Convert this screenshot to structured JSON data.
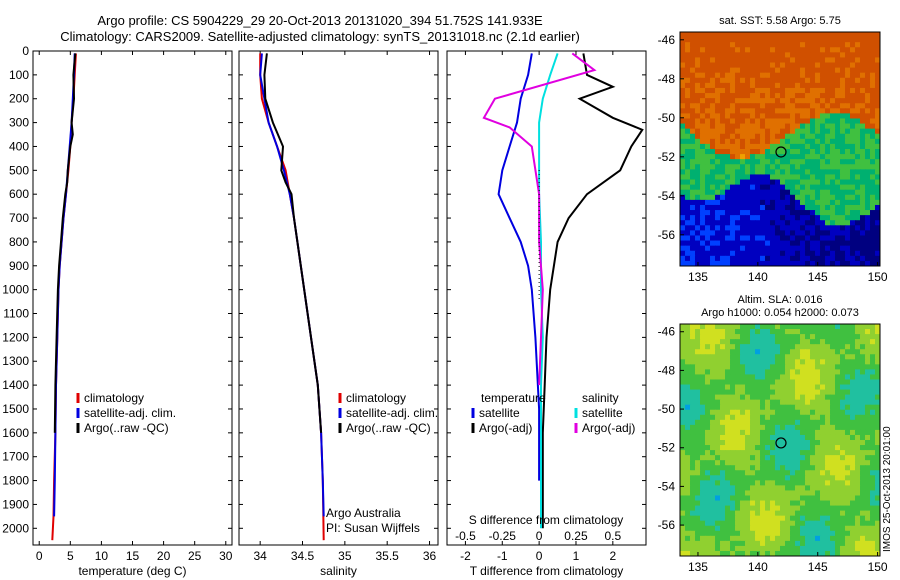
{
  "header": {
    "line1": "Argo profile: CS 5904229_29 20-Oct-2013 20131020_394 51.752S 141.933E",
    "line2": "Climatology: CARS2009. Satellite-adjusted climatology: synTS_20131018.nc (2.1d earlier)"
  },
  "colors": {
    "climatology": "#e00000",
    "satellite": "#0000e0",
    "argo": "#000000",
    "sat_salinity": "#00e0e0",
    "argo_salinity": "#e000e0"
  },
  "chart_data": [
    {
      "type": "line",
      "name": "temperature-profile",
      "xlabel": "temperature (deg C)",
      "xlim": [
        -1,
        31
      ],
      "ylim": [
        2070,
        0
      ],
      "xticks": [
        "0",
        "5",
        "10",
        "15",
        "20",
        "25",
        "30"
      ],
      "yticks": [
        "0",
        "100",
        "200",
        "300",
        "400",
        "500",
        "600",
        "700",
        "800",
        "900",
        "1000",
        "1100",
        "1200",
        "1300",
        "1400",
        "1500",
        "1600",
        "1700",
        "1800",
        "1900",
        "2000"
      ],
      "legend": [
        "climatology",
        "satellite-adj. clim.",
        "Argo(..raw -QC)"
      ],
      "series": [
        {
          "name": "climatology",
          "color": "#e00000",
          "x": [
            5.9,
            5.7,
            5.5,
            5.2,
            5.0,
            4.7,
            4.3,
            3.9,
            3.6,
            3.3,
            3.1,
            2.9,
            2.7,
            2.6,
            2.4,
            2.3,
            2.1
          ],
          "y": [
            10,
            100,
            200,
            300,
            400,
            500,
            600,
            700,
            800,
            900,
            1000,
            1200,
            1400,
            1600,
            1800,
            1950,
            2050
          ]
        },
        {
          "name": "satellite-adj. clim.",
          "color": "#0000e0",
          "x": [
            5.7,
            5.6,
            5.4,
            5.2,
            4.9,
            4.6,
            4.3,
            3.9,
            3.6,
            3.3,
            3.1,
            2.9,
            2.7,
            2.6,
            2.5,
            2.4
          ],
          "y": [
            10,
            100,
            200,
            300,
            400,
            500,
            600,
            700,
            800,
            900,
            1000,
            1200,
            1400,
            1600,
            1800,
            1950
          ]
        },
        {
          "name": "Argo(..raw -QC)",
          "color": "#000000",
          "x": [
            5.8,
            5.5,
            5.6,
            5.2,
            5.4,
            5.0,
            4.6,
            4.5,
            4.2,
            3.8,
            3.5,
            3.2,
            3.0,
            2.8,
            2.6,
            2.5
          ],
          "y": [
            10,
            100,
            200,
            300,
            350,
            400,
            500,
            550,
            600,
            700,
            800,
            900,
            1000,
            1200,
            1400,
            1600
          ]
        }
      ]
    },
    {
      "type": "line",
      "name": "salinity-profile",
      "xlabel": "salinity",
      "xlim": [
        33.75,
        36.1
      ],
      "ylim": [
        2070,
        0
      ],
      "xticks": [
        "34",
        "34.5",
        "35",
        "35.5",
        "36"
      ],
      "legend": [
        "climatology",
        "satellite-adj. clim.",
        "Argo(..raw -QC)"
      ],
      "annotation": [
        "Argo Australia",
        "PI: Susan Wijffels"
      ],
      "series": [
        {
          "name": "climatology",
          "color": "#e00000",
          "x": [
            34.0,
            34.0,
            34.02,
            34.1,
            34.2,
            34.3,
            34.35,
            34.4,
            34.44,
            34.48,
            34.52,
            34.56,
            34.6,
            34.64,
            34.68,
            34.72,
            34.74,
            34.75
          ],
          "y": [
            10,
            100,
            200,
            300,
            400,
            500,
            600,
            700,
            800,
            900,
            1000,
            1100,
            1200,
            1300,
            1400,
            1600,
            1800,
            2050
          ]
        },
        {
          "name": "satellite-adj. clim.",
          "color": "#0000e0",
          "x": [
            34.02,
            34.0,
            34.05,
            34.1,
            34.2,
            34.28,
            34.35,
            34.4,
            34.44,
            34.48,
            34.52,
            34.56,
            34.6,
            34.64,
            34.68,
            34.72,
            34.74,
            34.75
          ],
          "y": [
            10,
            100,
            200,
            300,
            400,
            500,
            600,
            700,
            800,
            900,
            1000,
            1100,
            1200,
            1300,
            1400,
            1600,
            1800,
            1950
          ]
        },
        {
          "name": "Argo(..raw -QC)",
          "color": "#000000",
          "x": [
            34.08,
            34.05,
            34.06,
            34.15,
            34.27,
            34.25,
            34.3,
            34.37,
            34.4,
            34.44,
            34.48,
            34.52,
            34.56,
            34.6,
            34.64,
            34.68,
            34.72
          ],
          "y": [
            10,
            100,
            200,
            300,
            400,
            500,
            550,
            600,
            700,
            800,
            900,
            1000,
            1100,
            1200,
            1300,
            1400,
            1600
          ]
        }
      ]
    },
    {
      "type": "line",
      "name": "difference-profile",
      "xlabel": "T difference from climatology",
      "xlabel_top": "S difference from climatology",
      "xlim": [
        -2.5,
        2.9
      ],
      "xticks": [
        "-2",
        "-1",
        "0",
        "1",
        "2"
      ],
      "xticks_top": [
        "-0.5",
        "-0.25",
        "0",
        "0.25",
        "0.5"
      ],
      "ylim": [
        2070,
        0
      ],
      "legend_left_title": "temperature",
      "legend_right_title": "salinity",
      "legend_left": [
        "satellite",
        "Argo(-adj)"
      ],
      "legend_right": [
        "satellite",
        "Argo(-adj)"
      ],
      "series": [
        {
          "name": "temperature satellite",
          "color": "#0000e0",
          "x": [
            -0.2,
            -0.3,
            -0.5,
            -0.6,
            -0.8,
            -1.0,
            -1.1,
            -0.8,
            -0.5,
            -0.3,
            -0.2,
            -0.1,
            0.0,
            0.0
          ],
          "y": [
            10,
            100,
            200,
            300,
            400,
            500,
            600,
            700,
            800,
            900,
            1000,
            1200,
            1500,
            1800
          ]
        },
        {
          "name": "temperature Argo(-adj)",
          "color": "#000000",
          "x": [
            1.2,
            1.3,
            2.0,
            1.1,
            2.0,
            2.8,
            2.5,
            2.2,
            1.3,
            0.8,
            0.5,
            0.4,
            0.3,
            0.2,
            0.15,
            0.1,
            0.1,
            0.1
          ],
          "y": [
            10,
            100,
            150,
            200,
            280,
            330,
            400,
            500,
            600,
            700,
            800,
            900,
            1000,
            1200,
            1400,
            1600,
            1800,
            2000
          ]
        },
        {
          "name": "salinity satellite",
          "color": "#00e0e0",
          "x": [
            0.5,
            0.3,
            0.2,
            0.1,
            0.0,
            0.0,
            0.0,
            0.05,
            0.05,
            0.1,
            0.05,
            0.05,
            0.05,
            0.05
          ],
          "y": [
            10,
            100,
            150,
            200,
            300,
            400,
            600,
            800,
            1000,
            1200,
            1400,
            1600,
            1800,
            2000
          ]
        },
        {
          "name": "salinity Argo(-adj)",
          "color": "#e000e0",
          "x": [
            0.9,
            1.5,
            -1.2,
            -1.5,
            -0.8,
            -0.2,
            0.0,
            0.0,
            0.1,
            0.05,
            0.0
          ],
          "y": [
            10,
            80,
            200,
            280,
            320,
            400,
            600,
            800,
            1000,
            1200,
            1400
          ]
        }
      ]
    },
    {
      "type": "heatmap",
      "name": "sst-map",
      "title": "sat. SST: 5.58  Argo: 5.75",
      "xlim": [
        133.5,
        150.2
      ],
      "ylim": [
        -57.6,
        -45.6
      ],
      "xticks": [
        "135",
        "140",
        "145",
        "150"
      ],
      "yticks": [
        "-46",
        "-48",
        "-50",
        "-52",
        "-54",
        "-56"
      ],
      "marker": {
        "lon": 141.933,
        "lat": -51.752
      }
    },
    {
      "type": "heatmap",
      "name": "sla-map",
      "title_line1": "Altim. SLA: 0.016",
      "title_line2": "Argo h1000: 0.054  h2000: 0.073",
      "side_label": "IMOS 25-Oct-2013 20:01:00",
      "xlim": [
        133.5,
        150.2
      ],
      "ylim": [
        -57.6,
        -45.6
      ],
      "xticks": [
        "135",
        "140",
        "145",
        "150"
      ],
      "yticks": [
        "-46",
        "-48",
        "-50",
        "-52",
        "-54",
        "-56"
      ],
      "marker": {
        "lon": 141.933,
        "lat": -51.752
      }
    }
  ]
}
